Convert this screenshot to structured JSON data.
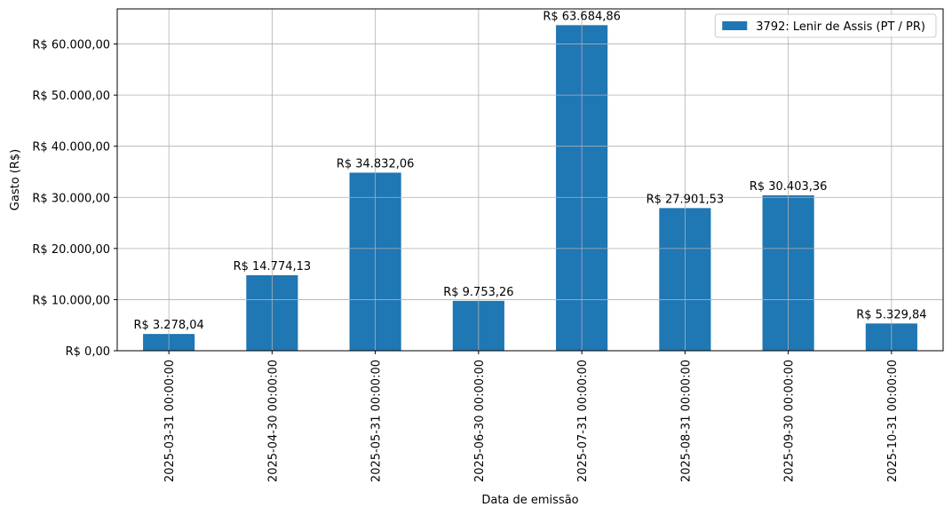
{
  "chart_data": {
    "type": "bar",
    "categories": [
      "2025-03-31 00:00:00",
      "2025-04-30 00:00:00",
      "2025-05-31 00:00:00",
      "2025-06-30 00:00:00",
      "2025-07-31 00:00:00",
      "2025-08-31 00:00:00",
      "2025-09-30 00:00:00",
      "2025-10-31 00:00:00"
    ],
    "series": [
      {
        "name": "3792: Lenir de Assis (PT / PR)",
        "color": "#1f77b4",
        "values": [
          3278.04,
          14774.13,
          34832.06,
          9753.26,
          63684.86,
          27901.53,
          30403.36,
          5329.84
        ],
        "value_labels": [
          "R$ 3.278,04",
          "R$ 14.774,13",
          "R$ 34.832,06",
          "R$ 9.753,26",
          "R$ 63.684,86",
          "R$ 27.901,53",
          "R$ 30.403,36",
          "R$ 5.329,84"
        ]
      }
    ],
    "xlabel": "Data de emissão",
    "ylabel": "Gasto (R$)",
    "ylim": [
      0,
      66870
    ],
    "yticks": [
      0,
      10000,
      20000,
      30000,
      40000,
      50000,
      60000
    ],
    "ytick_labels": [
      "R$ 0,00",
      "R$ 10.000,00",
      "R$ 20.000,00",
      "R$ 30.000,00",
      "R$ 40.000,00",
      "R$ 50.000,00",
      "R$ 60.000,00"
    ],
    "grid": true,
    "legend_position": "top-right"
  }
}
